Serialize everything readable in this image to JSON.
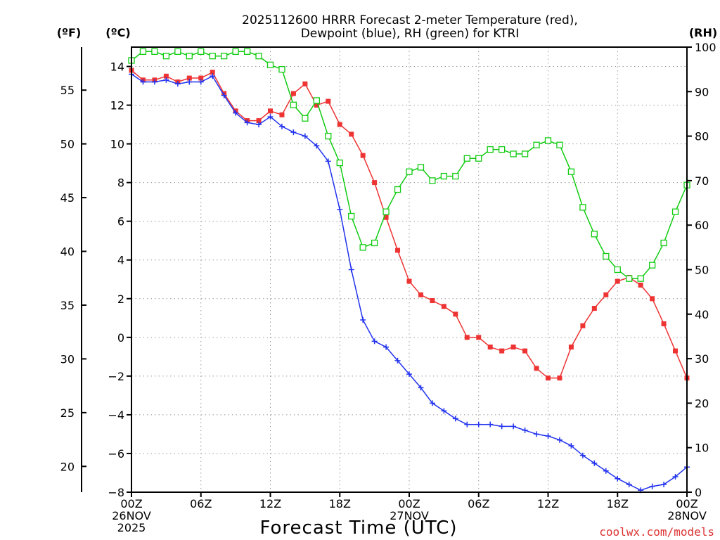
{
  "chart_data": {
    "type": "line",
    "title_line1": "2025112600 HRRR Forecast 2-meter Temperature (red),",
    "title_line2": "Dewpoint (blue), RH (green) for KTRI",
    "left_unit_f": "(ºF)",
    "left_unit_c": "(ºC)",
    "right_unit": "(RH)",
    "xlabel": "Forecast Time (UTC)",
    "credit": "coolwx.com/models",
    "colors": {
      "temperature": "#ee3333",
      "dewpoint": "#2233ee",
      "rh": "#11cc11",
      "grid": "#999999"
    },
    "x_tick_labels": [
      {
        "hour": 0,
        "lines": [
          "00Z",
          "26NOV",
          "2025"
        ]
      },
      {
        "hour": 6,
        "lines": [
          "06Z"
        ]
      },
      {
        "hour": 12,
        "lines": [
          "12Z"
        ]
      },
      {
        "hour": 18,
        "lines": [
          "18Z"
        ]
      },
      {
        "hour": 24,
        "lines": [
          "00Z",
          "27NOV"
        ]
      },
      {
        "hour": 30,
        "lines": [
          "06Z"
        ]
      },
      {
        "hour": 36,
        "lines": [
          "12Z"
        ]
      },
      {
        "hour": 42,
        "lines": [
          "18Z"
        ]
      },
      {
        "hour": 48,
        "lines": [
          "00Z",
          "28NOV"
        ]
      }
    ],
    "xlim": [
      0,
      48
    ],
    "celsius_ticks": [
      "14",
      "12",
      "10",
      "8",
      "6",
      "4",
      "2",
      "0",
      "−2",
      "−4",
      "−6",
      "−8"
    ],
    "celsius_ylim": [
      -8,
      15
    ],
    "fahrenheit_ticks": [
      "55",
      "50",
      "45",
      "40",
      "35",
      "30",
      "25",
      "20"
    ],
    "rh_ticks": [
      "100",
      "90",
      "80",
      "70",
      "60",
      "50",
      "40",
      "30",
      "20",
      "10",
      "0"
    ],
    "rh_ylim": [
      0,
      100
    ],
    "hours": [
      0,
      1,
      2,
      3,
      4,
      5,
      6,
      7,
      8,
      9,
      10,
      11,
      12,
      13,
      14,
      15,
      16,
      17,
      18,
      19,
      20,
      21,
      22,
      23,
      24,
      25,
      26,
      27,
      28,
      29,
      30,
      31,
      32,
      33,
      34,
      35,
      36,
      37,
      38,
      39,
      40,
      41,
      42,
      43,
      44,
      45,
      46,
      47,
      48
    ],
    "series": [
      {
        "name": "2-meter Temperature",
        "key": "temperature",
        "axis": "celsius",
        "marker": "filled-square",
        "values": [
          13.8,
          13.3,
          13.3,
          13.5,
          13.2,
          13.4,
          13.4,
          13.7,
          12.6,
          11.7,
          11.2,
          11.2,
          11.7,
          11.5,
          12.6,
          13.1,
          12.0,
          12.2,
          11.0,
          10.5,
          9.4,
          8.0,
          6.2,
          4.5,
          2.9,
          2.2,
          1.9,
          1.6,
          1.2,
          0.0,
          0.0,
          -0.5,
          -0.7,
          -0.5,
          -0.7,
          -1.6,
          -2.1,
          -2.1,
          -0.5,
          0.6,
          1.5,
          2.2,
          2.9,
          3.1,
          2.7,
          2.0,
          0.7,
          -0.7,
          -2.1
        ]
      },
      {
        "name": "Dewpoint",
        "key": "dewpoint",
        "axis": "celsius",
        "marker": "plus",
        "values": [
          13.6,
          13.2,
          13.2,
          13.3,
          13.1,
          13.2,
          13.2,
          13.5,
          12.5,
          11.6,
          11.1,
          11.0,
          11.4,
          10.9,
          10.6,
          10.4,
          9.9,
          9.1,
          6.6,
          3.5,
          0.9,
          -0.2,
          -0.5,
          -1.2,
          -1.9,
          -2.6,
          -3.4,
          -3.8,
          -4.2,
          -4.5,
          -4.5,
          -4.5,
          -4.6,
          -4.6,
          -4.8,
          -5.0,
          -5.1,
          -5.3,
          -5.6,
          -6.1,
          -6.5,
          -6.9,
          -7.3,
          -7.6,
          -7.9,
          -7.7,
          -7.6,
          -7.2,
          -6.7
        ]
      },
      {
        "name": "RH",
        "key": "rh",
        "axis": "rh",
        "marker": "open-square",
        "values": [
          97,
          99,
          99,
          98,
          99,
          98,
          99,
          98,
          98,
          99,
          99,
          98,
          96,
          95,
          87,
          84,
          88,
          80,
          74,
          62,
          55,
          56,
          63,
          68,
          72,
          73,
          70,
          71,
          71,
          75,
          75,
          77,
          77,
          76,
          76,
          78,
          79,
          78,
          72,
          64,
          58,
          53,
          50,
          48,
          48,
          51,
          56,
          63,
          69
        ]
      }
    ]
  }
}
